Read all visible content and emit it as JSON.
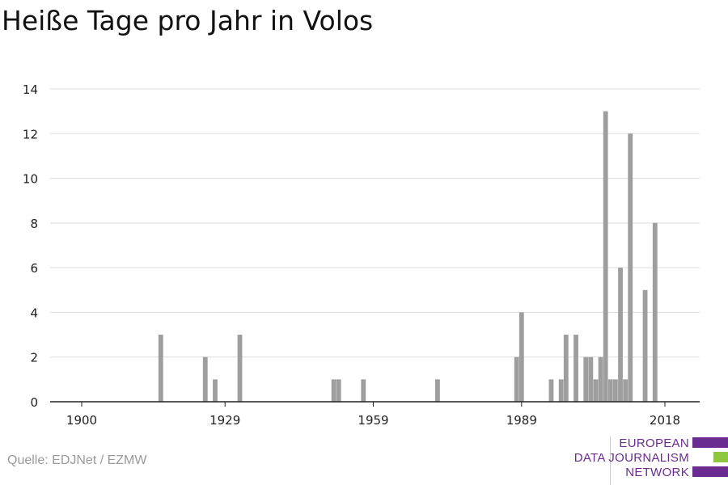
{
  "title": "Heiße Tage pro Jahr in Volos",
  "source": "Quelle: EDJNet / EZMW",
  "logo": {
    "line1": "EUROPEAN",
    "line2": "DATA JOURNALISM",
    "line3": "NETWORK",
    "colors": [
      "#6b2c91",
      "#8dc63f",
      "#6b2c91"
    ]
  },
  "chart_data": {
    "type": "bar",
    "title": "Heiße Tage pro Jahr in Volos",
    "xlabel": "",
    "ylabel": "",
    "xlim": [
      1900,
      2018
    ],
    "ylim": [
      0,
      14
    ],
    "xticks": [
      1900,
      1929,
      1959,
      1989,
      2018
    ],
    "yticks": [
      0,
      2,
      4,
      6,
      8,
      10,
      12,
      14
    ],
    "grid": true,
    "bar_color": "#9e9e9e",
    "x": [
      1916,
      1925,
      1927,
      1932,
      1951,
      1952,
      1957,
      1972,
      1988,
      1989,
      1995,
      1997,
      1998,
      2000,
      2002,
      2003,
      2004,
      2005,
      2006,
      2007,
      2008,
      2009,
      2010,
      2011,
      2012,
      2014,
      2016
    ],
    "values": [
      3,
      2,
      1,
      3,
      1,
      1,
      1,
      1,
      2,
      4,
      1,
      1,
      3,
      3,
      2,
      2,
      1,
      2,
      13,
      1,
      1,
      6,
      1,
      12,
      0,
      5,
      8
    ]
  }
}
